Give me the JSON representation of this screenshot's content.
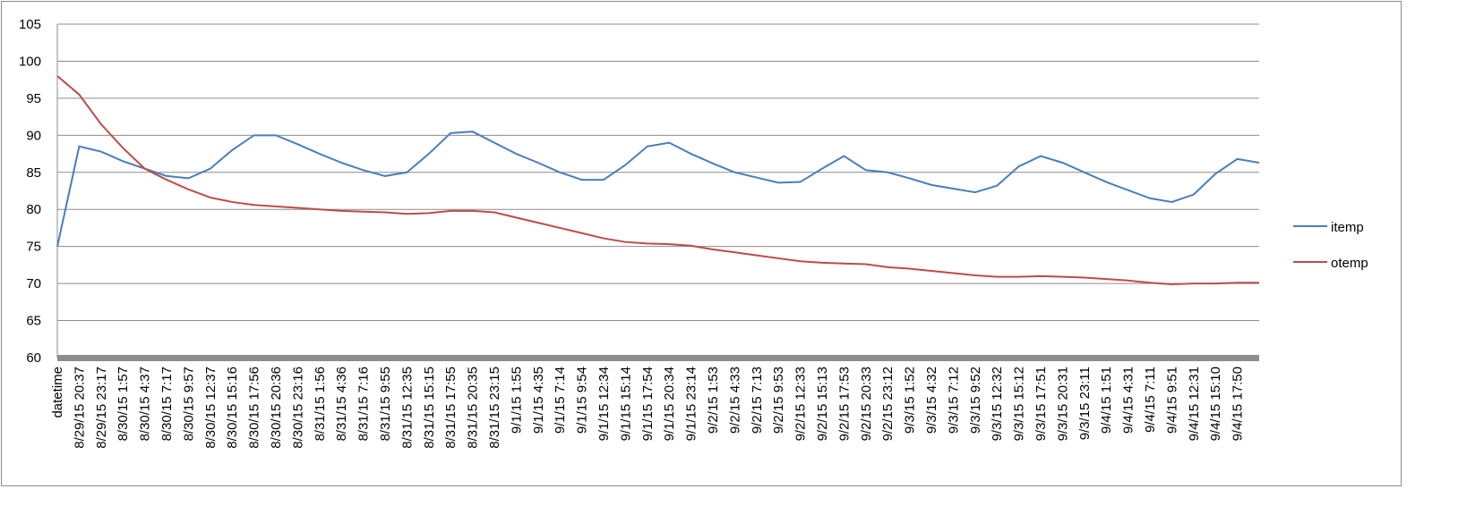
{
  "chart_data": {
    "type": "line",
    "categories": [
      "datetime",
      "8/29/15 20:37",
      "8/29/15 23:17",
      "8/30/15 1:57",
      "8/30/15 4:37",
      "8/30/15 7:17",
      "8/30/15 9:57",
      "8/30/15 12:37",
      "8/30/15 15:16",
      "8/30/15 17:56",
      "8/30/15 20:36",
      "8/30/15 23:16",
      "8/31/15 1:56",
      "8/31/15 4:36",
      "8/31/15 7:16",
      "8/31/15 9:55",
      "8/31/15 12:35",
      "8/31/15 15:15",
      "8/31/15 17:55",
      "8/31/15 20:35",
      "8/31/15 23:15",
      "9/1/15 1:55",
      "9/1/15 4:35",
      "9/1/15 7:14",
      "9/1/15 9:54",
      "9/1/15 12:34",
      "9/1/15 15:14",
      "9/1/15 17:54",
      "9/1/15 20:34",
      "9/1/15 23:14",
      "9/2/15 1:53",
      "9/2/15 4:33",
      "9/2/15 7:13",
      "9/2/15 9:53",
      "9/2/15 12:33",
      "9/2/15 15:13",
      "9/2/15 17:53",
      "9/2/15 20:33",
      "9/2/15 23:12",
      "9/3/15 1:52",
      "9/3/15 4:32",
      "9/3/15 7:12",
      "9/3/15 9:52",
      "9/3/15 12:32",
      "9/3/15 15:12",
      "9/3/15 17:51",
      "9/3/15 20:31",
      "9/3/15 23:11",
      "9/4/15 1:51",
      "9/4/15 4:31",
      "9/4/15 7:11",
      "9/4/15 9:51",
      "9/4/15 12:31",
      "9/4/15 15:10",
      "9/4/15 17:50",
      null
    ],
    "series": [
      {
        "name": "itemp",
        "color": "#4a7ebb",
        "values": [
          75,
          88.5,
          87.8,
          86.5,
          85.5,
          84.5,
          84.2,
          85.5,
          88,
          90,
          90,
          88.8,
          87.5,
          86.3,
          85.3,
          84.5,
          85,
          87.5,
          90.3,
          90.5,
          89,
          87.5,
          86.3,
          85,
          84,
          84,
          86,
          88.5,
          89,
          87.5,
          86.2,
          85,
          84.3,
          83.6,
          83.7,
          85.5,
          87.2,
          85.3,
          85,
          84.2,
          83.3,
          82.8,
          82.3,
          83.2,
          85.8,
          87.2,
          86.3,
          85,
          83.7,
          82.6,
          81.5,
          81,
          82,
          84.8,
          86.8,
          86.3
        ]
      },
      {
        "name": "otemp",
        "color": "#be4b48",
        "values": [
          98,
          95.5,
          91.5,
          88.3,
          85.5,
          84,
          82.7,
          81.6,
          81,
          80.6,
          80.4,
          80.2,
          80,
          79.8,
          79.7,
          79.6,
          79.4,
          79.5,
          79.8,
          79.8,
          79.6,
          78.9,
          78.2,
          77.5,
          76.8,
          76.1,
          75.6,
          75.4,
          75.3,
          75.1,
          74.6,
          74.2,
          73.8,
          73.4,
          73,
          72.8,
          72.7,
          72.6,
          72.2,
          72,
          71.7,
          71.4,
          71.1,
          70.9,
          70.9,
          71,
          70.9,
          70.8,
          70.6,
          70.4,
          70.1,
          69.9,
          70,
          70,
          70.1,
          70.1
        ]
      }
    ],
    "ylim": [
      60,
      105
    ],
    "yticks": [
      60,
      65,
      70,
      75,
      80,
      85,
      90,
      95,
      100,
      105
    ],
    "grid": true,
    "legend": "right"
  }
}
